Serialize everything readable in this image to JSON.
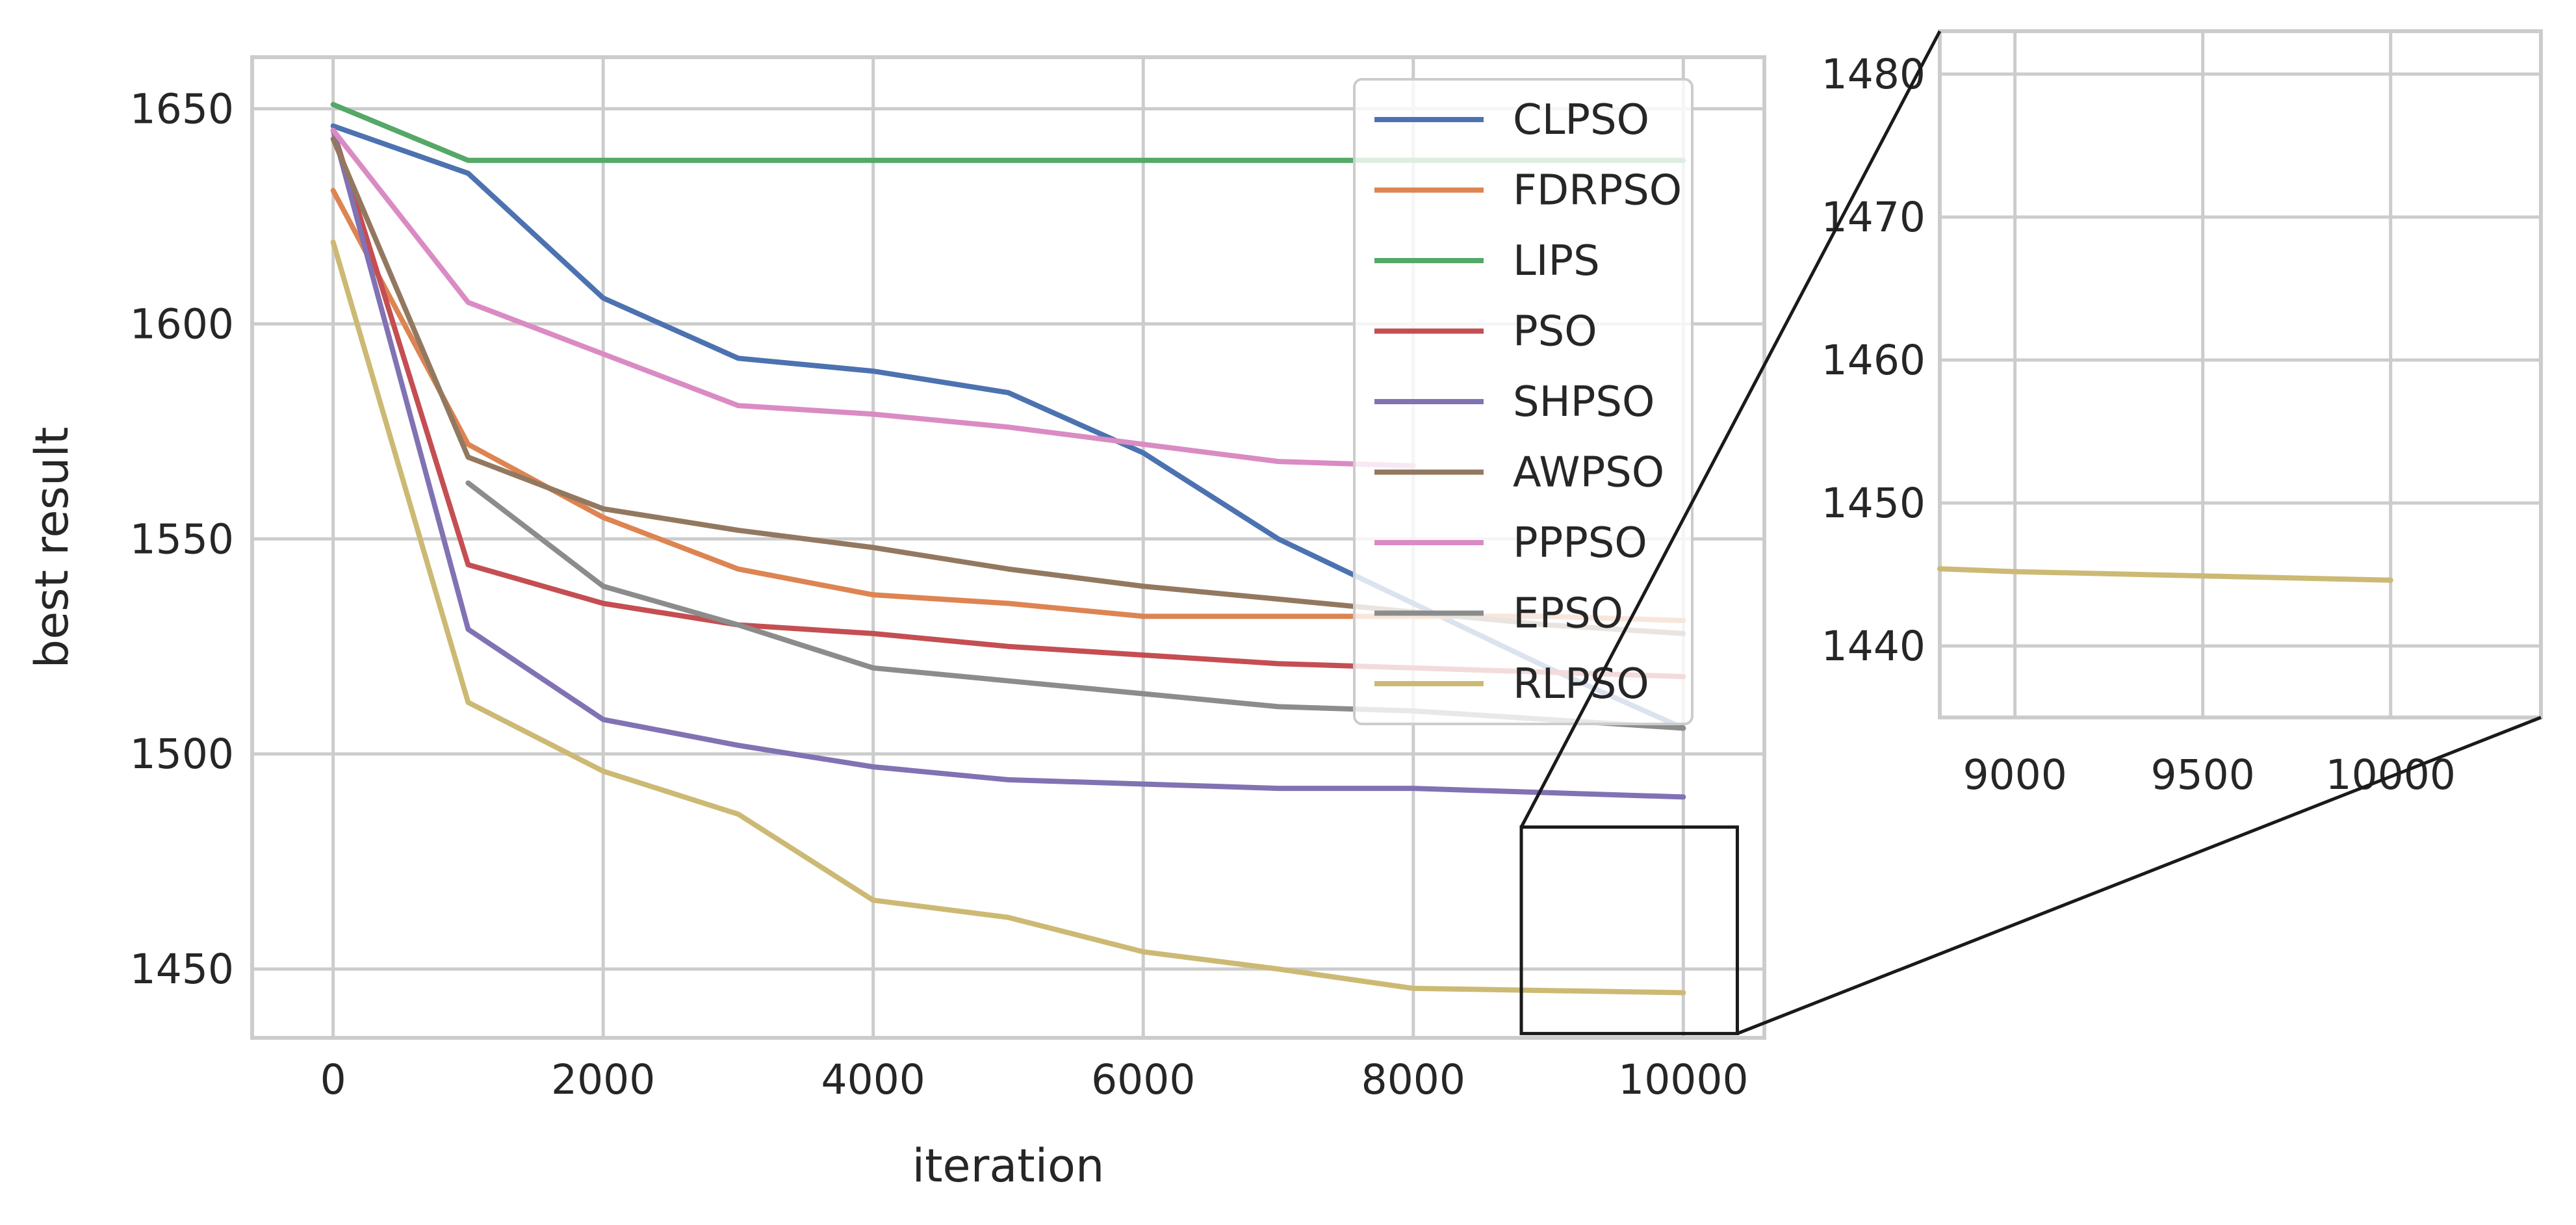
{
  "chart_data": [
    {
      "type": "line",
      "role": "main",
      "xlabel": "iteration",
      "ylabel": "best result",
      "xlim": [
        -600,
        10600
      ],
      "ylim": [
        1434,
        1662
      ],
      "xticks": [
        0,
        2000,
        4000,
        6000,
        8000,
        10000
      ],
      "xtick_labels": [
        "0",
        "2000",
        "4000",
        "6000",
        "8000",
        "10000"
      ],
      "yticks": [
        1450,
        1500,
        1550,
        1600,
        1650
      ],
      "ytick_labels": [
        "1450",
        "1500",
        "1550",
        "1600",
        "1650"
      ],
      "grid": true,
      "legend_position": "upper-right",
      "series": [
        {
          "name": "CLPSO",
          "color": "#4c72b0",
          "x": [
            0,
            1000,
            2000,
            3000,
            4000,
            5000,
            6000,
            7000,
            8000,
            9000,
            10000
          ],
          "values": [
            1646,
            1635,
            1606,
            1592,
            1589,
            1584,
            1570,
            1550,
            1535,
            1520,
            1506
          ]
        },
        {
          "name": "FDRPSO",
          "color": "#dd8452",
          "x": [
            0,
            1000,
            2000,
            3000,
            4000,
            5000,
            6000,
            7000,
            8000,
            9000,
            10000
          ],
          "values": [
            1631,
            1572,
            1555,
            1543,
            1537,
            1535,
            1532,
            1532,
            1532,
            1532,
            1531
          ]
        },
        {
          "name": "LIPS",
          "color": "#55a868",
          "x": [
            0,
            1000,
            2000,
            3000,
            4000,
            5000,
            6000,
            7000,
            8000,
            9000,
            10000
          ],
          "values": [
            1651,
            1638,
            1638,
            1638,
            1638,
            1638,
            1638,
            1638,
            1638,
            1638,
            1638
          ]
        },
        {
          "name": "PSO",
          "color": "#c44e52",
          "x": [
            0,
            1000,
            2000,
            3000,
            4000,
            5000,
            6000,
            7000,
            8000,
            9000,
            10000
          ],
          "values": [
            1645,
            1544,
            1535,
            1530,
            1528,
            1525,
            1523,
            1521,
            1520,
            1519,
            1518
          ]
        },
        {
          "name": "SHPSO",
          "color": "#8172b3",
          "x": [
            0,
            1000,
            2000,
            3000,
            4000,
            5000,
            6000,
            7000,
            8000,
            9000,
            10000
          ],
          "values": [
            1645,
            1529,
            1508,
            1502,
            1497,
            1494,
            1493,
            1492,
            1492,
            1491,
            1490
          ]
        },
        {
          "name": "AWPSO",
          "color": "#937860",
          "x": [
            0,
            1000,
            2000,
            3000,
            4000,
            5000,
            6000,
            7000,
            8000,
            9000,
            10000
          ],
          "values": [
            1643,
            1569,
            1557,
            1552,
            1548,
            1543,
            1539,
            1536,
            1533,
            1530,
            1528
          ]
        },
        {
          "name": "PPPSO",
          "color": "#da8bc3",
          "x": [
            0,
            1000,
            2000,
            3000,
            4000,
            5000,
            6000,
            7000,
            8000
          ],
          "values": [
            1645,
            1605,
            1593,
            1581,
            1579,
            1576,
            1572,
            1568,
            1567
          ]
        },
        {
          "name": "EPSO",
          "color": "#8c8c8c",
          "x": [
            1000,
            2000,
            3000,
            4000,
            5000,
            6000,
            7000,
            8000,
            9000,
            10000
          ],
          "values": [
            1563,
            1539,
            1530,
            1520,
            1517,
            1514,
            1511,
            1510,
            1508,
            1506
          ]
        },
        {
          "name": "RLPSO",
          "color": "#ccb974",
          "x": [
            0,
            1000,
            2000,
            3000,
            4000,
            5000,
            6000,
            7000,
            8000,
            9000,
            10000
          ],
          "values": [
            1619,
            1512,
            1496,
            1486,
            1466,
            1462,
            1454,
            1450,
            1445.5,
            1445,
            1444.5
          ]
        }
      ]
    },
    {
      "type": "line",
      "role": "inset-zoom",
      "xlim": [
        8800,
        10400
      ],
      "ylim": [
        1435,
        1483
      ],
      "xticks": [
        9000,
        9500,
        10000
      ],
      "xtick_labels": [
        "9000",
        "9500",
        "10000"
      ],
      "yticks": [
        1440,
        1450,
        1460,
        1470,
        1480
      ],
      "ytick_labels": [
        "1440",
        "1450",
        "1460",
        "1470",
        "1480"
      ],
      "grid": true,
      "series": [
        {
          "name": "RLPSO",
          "color": "#ccb974",
          "x": [
            8800,
            9000,
            10000
          ],
          "values": [
            1445.4,
            1445.2,
            1444.6
          ]
        }
      ]
    }
  ]
}
